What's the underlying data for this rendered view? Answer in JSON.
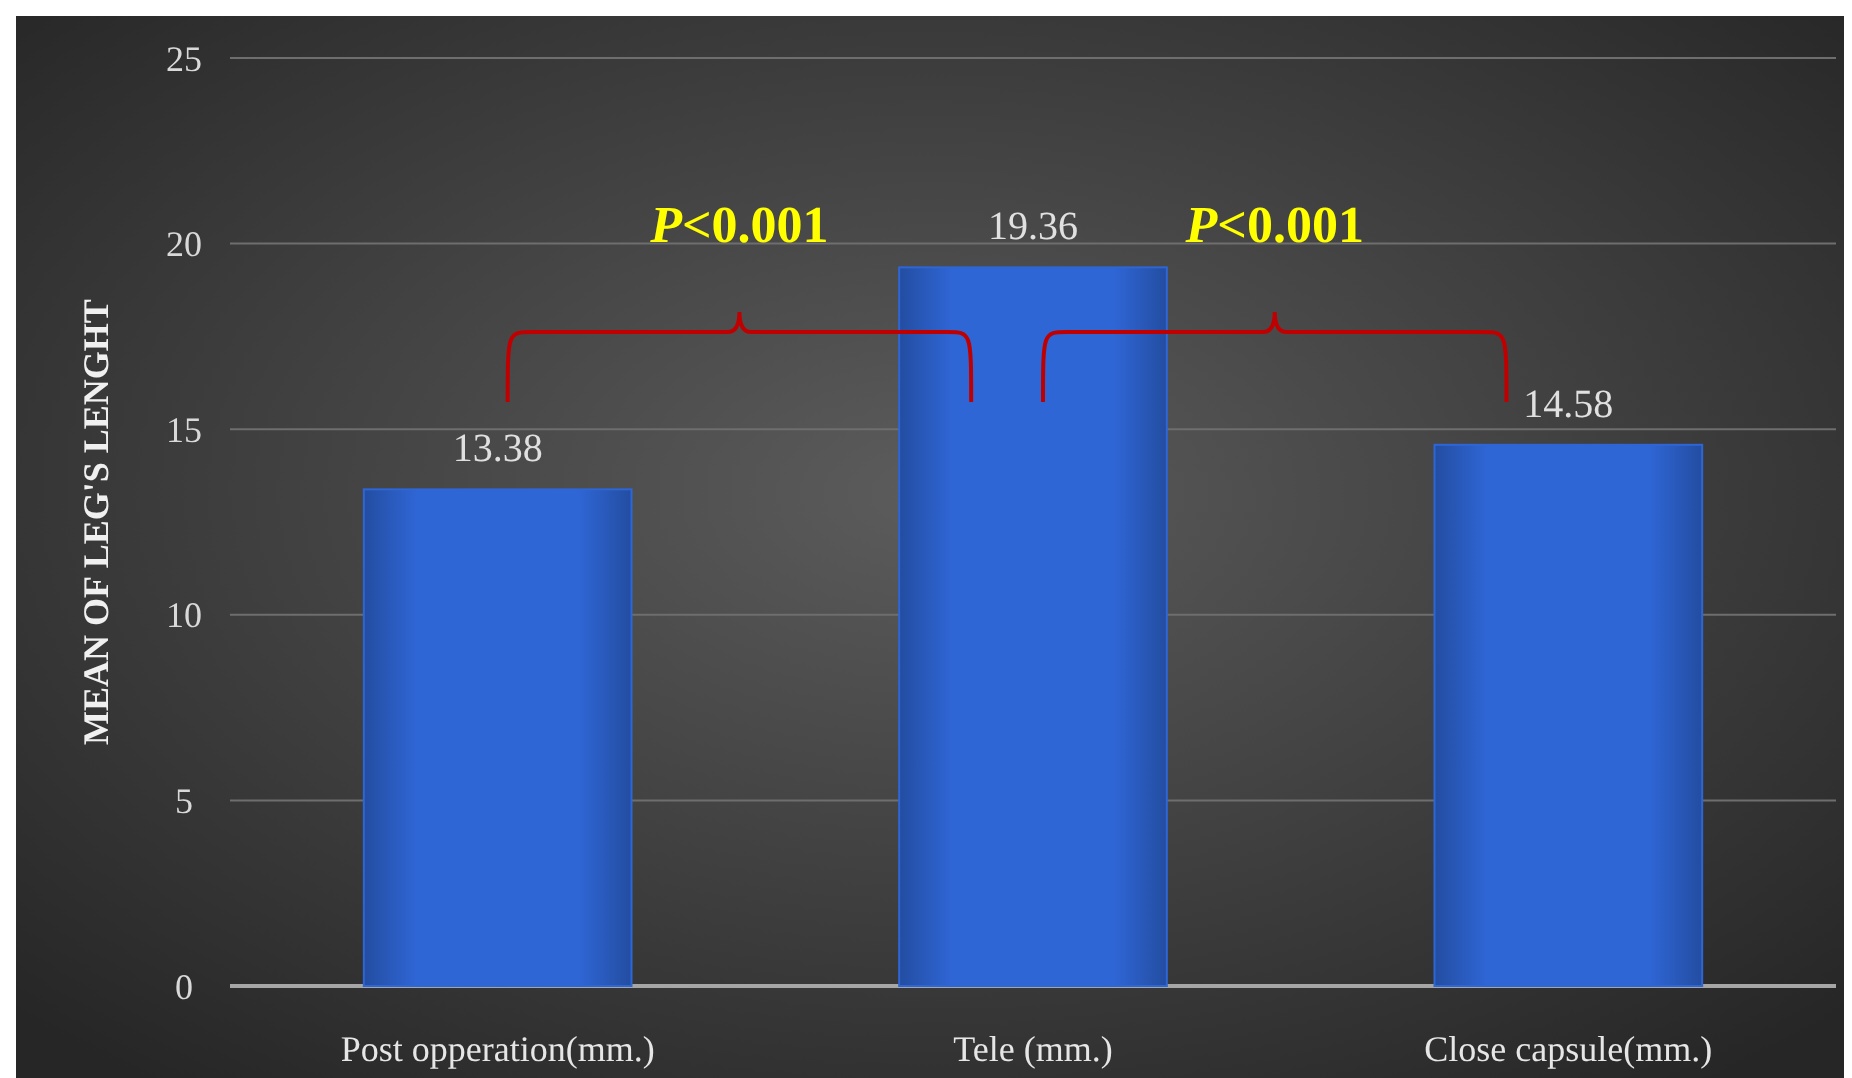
{
  "chart_data": {
    "type": "bar",
    "ylabel": "MEAN OF LEG'S LENGHT",
    "categories": [
      "Post opperation(mm.)",
      "Tele (mm.)",
      "Close capsule(mm.)"
    ],
    "values": [
      13.38,
      19.36,
      14.58
    ],
    "color": "#2f66d6",
    "ylim": [
      0,
      25
    ],
    "yticks": [
      0,
      5,
      10,
      15,
      20,
      25
    ],
    "grid": "y",
    "data_labels": true,
    "annotations": [
      "P<0.001",
      "P<0.001"
    ]
  }
}
